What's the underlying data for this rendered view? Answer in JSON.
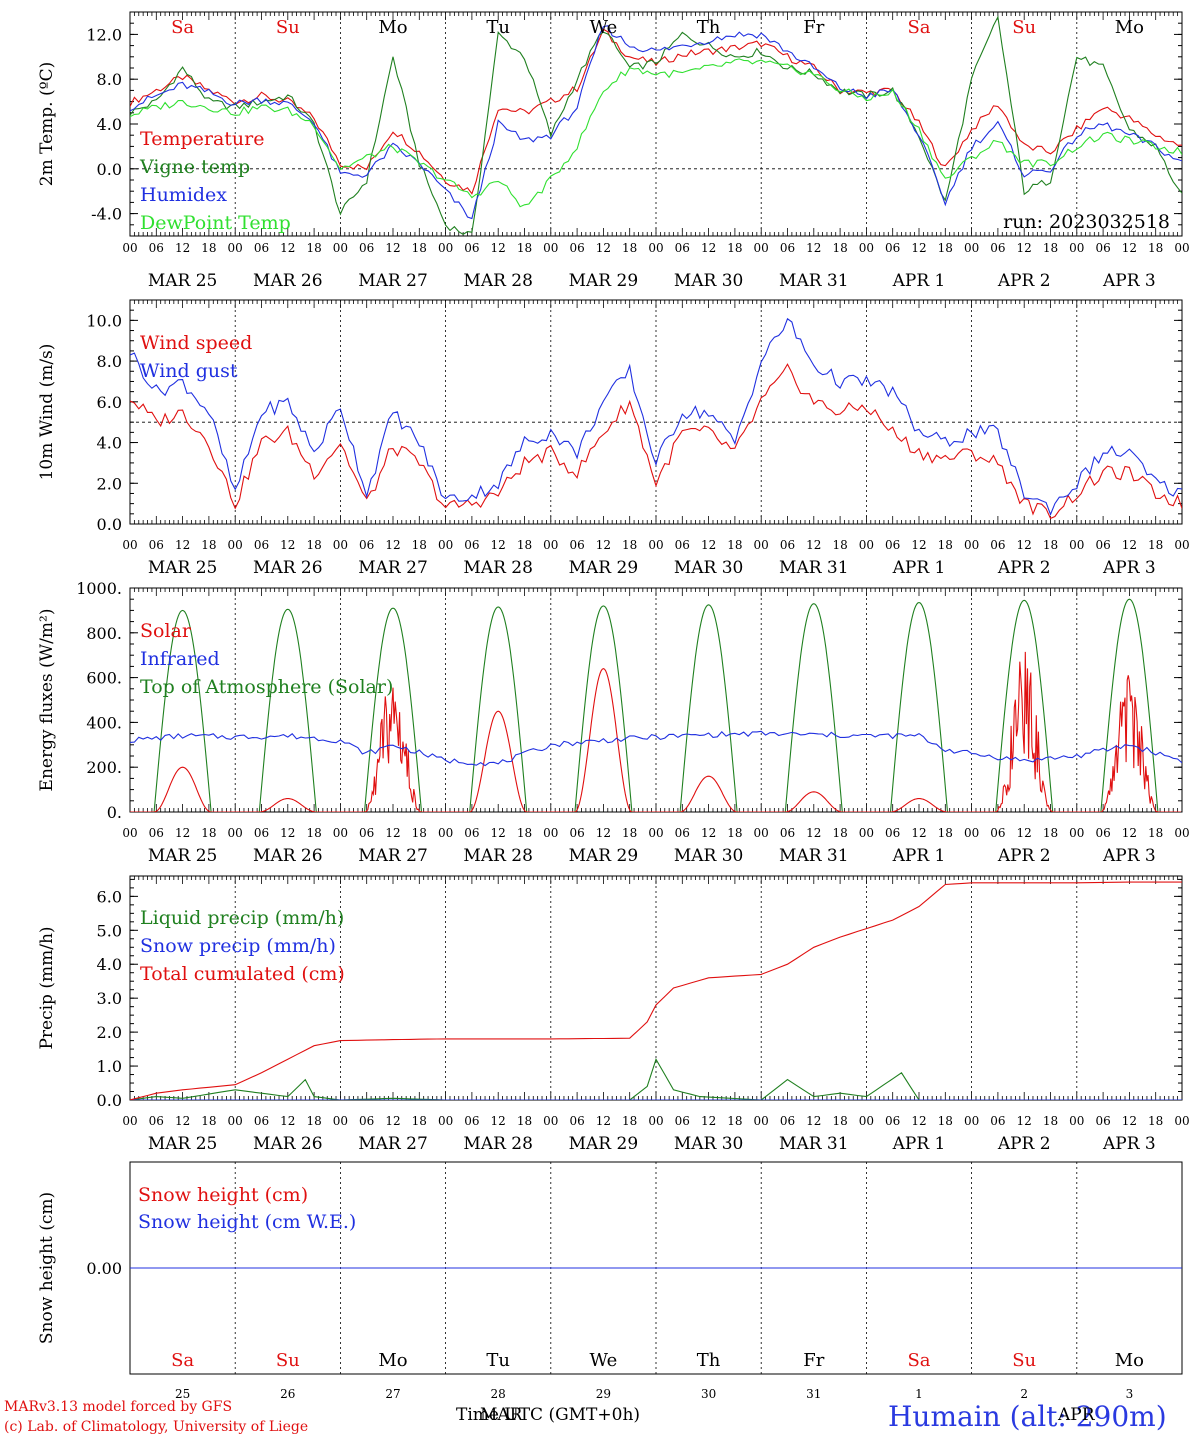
{
  "meta": {
    "model_line": "MARv3.13 model forced by GFS",
    "copyright_line": "(c) Lab. of Climatology, University of Liege",
    "time_axis_label": "Time UTC (GMT+0h)",
    "month_overlay": "MAR",
    "month_overlay_2": "APR",
    "station_label": "Humain (alt: 290m)",
    "run_label": "run: 2023032518"
  },
  "axis_common": {
    "hour_ticks": [
      "00",
      "06",
      "12",
      "18"
    ],
    "day_labels": [
      "MAR 25",
      "MAR 26",
      "MAR 27",
      "MAR 28",
      "MAR 29",
      "MAR 30",
      "MAR 31",
      "APR  1",
      "APR  2",
      "APR  3"
    ],
    "weekdays": [
      "Sa",
      "Su",
      "Mo",
      "Tu",
      "We",
      "Th",
      "Fr",
      "Sa",
      "Su",
      "Mo"
    ],
    "weekday_colors": [
      "#e01010",
      "#e01010",
      "#000000",
      "#000000",
      "#000000",
      "#000000",
      "#000000",
      "#e01010",
      "#e01010",
      "#000000"
    ],
    "day_numbers": [
      "25",
      "26",
      "27",
      "28",
      "29",
      "30",
      "31",
      "1",
      "2",
      "3"
    ],
    "days": 10
  },
  "chart_data": [
    {
      "id": "temperature",
      "type": "line",
      "ylabel": "2m Temp. (ºC)",
      "ylim": [
        -6.0,
        14.0
      ],
      "yticks": [
        -4.0,
        0.0,
        4.0,
        8.0,
        12.0
      ],
      "ytick_labels": [
        "-4.0",
        "0.0",
        "4.0",
        "8.0",
        "12.0"
      ],
      "ref_line": 0.0,
      "x_unit": "hours since MAR 25 00 UTC",
      "series": [
        {
          "name": "Temperature",
          "color": "#e01010",
          "x": [
            0,
            6,
            12,
            18,
            24,
            30,
            36,
            42,
            48,
            54,
            60,
            66,
            72,
            78,
            84,
            90,
            96,
            102,
            108,
            114,
            120,
            126,
            132,
            138,
            144,
            150,
            156,
            162,
            168,
            174,
            180,
            186,
            192,
            198,
            204,
            210,
            216,
            222,
            228,
            234,
            240
          ],
          "values": [
            5.9,
            7.0,
            8.2,
            7.0,
            6.0,
            6.5,
            6.0,
            4.5,
            0.5,
            0.0,
            3.5,
            1.5,
            -1.0,
            -2.0,
            5.5,
            5.0,
            6.0,
            7.2,
            12.3,
            10.0,
            9.4,
            10.2,
            10.5,
            10.8,
            11.2,
            10.0,
            9.0,
            7.0,
            6.8,
            7.0,
            4.0,
            0.0,
            3.5,
            5.8,
            2.0,
            1.5,
            3.5,
            5.5,
            4.5,
            3.0,
            2.0
          ]
        },
        {
          "name": "Vigne temp",
          "color": "#208020",
          "x": [
            0,
            6,
            12,
            18,
            24,
            30,
            36,
            42,
            48,
            54,
            60,
            66,
            72,
            78,
            84,
            90,
            96,
            102,
            108,
            114,
            120,
            126,
            132,
            138,
            144,
            150,
            156,
            162,
            168,
            174,
            180,
            186,
            192,
            198,
            204,
            210,
            216,
            222,
            228,
            234,
            240
          ],
          "values": [
            5.0,
            6.0,
            9.0,
            6.0,
            5.5,
            6.0,
            6.5,
            4.0,
            -4.0,
            -1.0,
            10.0,
            0.5,
            -5.0,
            -6.0,
            12.0,
            10.0,
            3.0,
            8.0,
            12.5,
            9.0,
            9.5,
            12.0,
            11.0,
            10.0,
            10.5,
            9.0,
            8.5,
            7.0,
            6.5,
            7.0,
            3.0,
            -3.0,
            8.0,
            13.5,
            -2.0,
            -1.0,
            10.0,
            9.0,
            3.5,
            2.0,
            -2.5
          ]
        },
        {
          "name": "Humidex",
          "color": "#2030e0",
          "x": [
            0,
            6,
            12,
            18,
            24,
            30,
            36,
            42,
            48,
            54,
            60,
            66,
            72,
            78,
            84,
            90,
            96,
            102,
            108,
            114,
            120,
            126,
            132,
            138,
            144,
            150,
            156,
            162,
            168,
            174,
            180,
            186,
            192,
            198,
            204,
            210,
            216,
            222,
            228,
            234,
            240
          ],
          "values": [
            5.5,
            6.5,
            7.5,
            6.8,
            5.8,
            6.2,
            5.8,
            4.2,
            -0.5,
            -0.5,
            2.0,
            0.5,
            -2.0,
            -4.5,
            4.0,
            2.5,
            3.0,
            5.5,
            12.8,
            11.0,
            10.5,
            11.0,
            11.5,
            12.0,
            12.0,
            10.5,
            9.0,
            7.2,
            6.5,
            7.0,
            3.0,
            -3.0,
            2.0,
            4.0,
            -0.5,
            0.0,
            3.0,
            4.0,
            3.0,
            2.0,
            0.5
          ]
        },
        {
          "name": "DewPoint Temp",
          "color": "#30e030",
          "x": [
            0,
            6,
            12,
            18,
            24,
            30,
            36,
            42,
            48,
            54,
            60,
            66,
            72,
            78,
            84,
            90,
            96,
            102,
            108,
            114,
            120,
            126,
            132,
            138,
            144,
            150,
            156,
            162,
            168,
            174,
            180,
            186,
            192,
            198,
            204,
            210,
            216,
            222,
            228,
            234,
            240
          ],
          "values": [
            4.8,
            5.5,
            6.0,
            5.5,
            5.0,
            5.5,
            5.2,
            4.0,
            0.0,
            1.0,
            2.0,
            0.5,
            -1.0,
            -2.5,
            -1.0,
            -3.5,
            -1.0,
            2.0,
            7.0,
            9.0,
            8.5,
            8.5,
            9.0,
            9.5,
            9.5,
            9.0,
            8.5,
            7.0,
            6.3,
            6.8,
            3.5,
            -1.0,
            1.0,
            2.5,
            0.5,
            0.5,
            2.0,
            3.0,
            2.5,
            2.0,
            1.5
          ]
        }
      ]
    },
    {
      "id": "wind",
      "type": "line",
      "ylabel": "10m Wind (m/s)",
      "ylim": [
        0.0,
        11.0
      ],
      "yticks": [
        0.0,
        2.0,
        4.0,
        6.0,
        8.0,
        10.0
      ],
      "ytick_labels": [
        "0.0",
        "2.0",
        "4.0",
        "6.0",
        "8.0",
        "10.0"
      ],
      "ref_line": 5.0,
      "x_unit": "hours since MAR 25 00 UTC",
      "series": [
        {
          "name": "Wind speed",
          "color": "#e01010",
          "x": [
            0,
            6,
            12,
            18,
            24,
            30,
            36,
            42,
            48,
            54,
            60,
            66,
            72,
            78,
            84,
            90,
            96,
            102,
            108,
            114,
            120,
            126,
            132,
            138,
            144,
            150,
            156,
            162,
            168,
            174,
            180,
            186,
            192,
            198,
            204,
            210,
            216,
            222,
            228,
            234,
            240
          ],
          "values": [
            6.2,
            5.0,
            5.5,
            4.0,
            1.0,
            4.0,
            4.5,
            2.5,
            4.0,
            1.0,
            3.8,
            3.0,
            0.8,
            1.0,
            1.5,
            3.0,
            3.5,
            2.5,
            4.5,
            6.0,
            2.0,
            4.5,
            4.5,
            3.5,
            6.0,
            7.5,
            6.0,
            5.5,
            5.8,
            4.5,
            3.5,
            3.2,
            3.5,
            3.0,
            1.0,
            0.5,
            1.5,
            2.5,
            2.5,
            1.5,
            1.0
          ]
        },
        {
          "name": "Wind gust",
          "color": "#2030e0",
          "x": [
            0,
            6,
            12,
            18,
            24,
            30,
            36,
            42,
            48,
            54,
            60,
            66,
            72,
            78,
            84,
            90,
            96,
            102,
            108,
            114,
            120,
            126,
            132,
            138,
            144,
            150,
            156,
            162,
            168,
            174,
            180,
            186,
            192,
            198,
            204,
            210,
            216,
            222,
            228,
            234,
            240
          ],
          "values": [
            8.5,
            6.5,
            7.0,
            5.5,
            1.5,
            5.5,
            6.0,
            3.5,
            5.8,
            1.5,
            5.5,
            4.0,
            1.2,
            1.4,
            2.0,
            4.0,
            4.5,
            3.5,
            6.0,
            7.5,
            3.0,
            5.5,
            5.5,
            4.0,
            8.0,
            10.0,
            7.8,
            7.0,
            7.0,
            6.5,
            4.5,
            4.0,
            4.5,
            4.5,
            1.5,
            0.8,
            2.0,
            3.5,
            3.5,
            2.0,
            1.5
          ]
        }
      ]
    },
    {
      "id": "energy",
      "type": "line",
      "ylabel": "Energy fluxes (W/m²)",
      "ylim": [
        0,
        1000
      ],
      "yticks": [
        0,
        200,
        400,
        600,
        800,
        1000
      ],
      "ytick_labels": [
        "0.",
        "200.",
        "400.",
        "600.",
        "800.",
        "1000."
      ],
      "x_unit": "hours since MAR 25 00 UTC",
      "toa_peaks": [
        900,
        905,
        910,
        915,
        920,
        925,
        930,
        935,
        945,
        950
      ],
      "solar_peaks": [
        200,
        60,
        650,
        450,
        640,
        160,
        90,
        60,
        720,
        650
      ],
      "series": [
        {
          "name": "Solar",
          "color": "#e01010"
        },
        {
          "name": "Infrared",
          "color": "#2030e0",
          "x": [
            0,
            12,
            24,
            36,
            48,
            54,
            60,
            72,
            84,
            96,
            108,
            120,
            132,
            144,
            156,
            168,
            180,
            186,
            192,
            204,
            216,
            228,
            240
          ],
          "values": [
            320,
            340,
            335,
            340,
            320,
            260,
            300,
            230,
            215,
            300,
            320,
            335,
            345,
            350,
            345,
            340,
            340,
            280,
            260,
            230,
            250,
            300,
            230
          ]
        },
        {
          "name": "Top of Atmosphere (Solar)",
          "color": "#208020"
        }
      ]
    },
    {
      "id": "precip",
      "type": "line",
      "ylabel": "Precip (mm/h)",
      "ylim": [
        0.0,
        6.6
      ],
      "yticks": [
        0.0,
        1.0,
        2.0,
        3.0,
        4.0,
        5.0,
        6.0
      ],
      "ytick_labels": [
        "0.0",
        "1.0",
        "2.0",
        "3.0",
        "4.0",
        "5.0",
        "6.0"
      ],
      "x_unit": "hours since MAR 25 00 UTC",
      "series": [
        {
          "name": "Liquid precip (mm/h)",
          "color": "#208020",
          "x": [
            0,
            6,
            12,
            24,
            30,
            36,
            40,
            42,
            48,
            60,
            72,
            96,
            114,
            118,
            120,
            124,
            130,
            144,
            150,
            156,
            162,
            168,
            176,
            180,
            186,
            192,
            240
          ],
          "values": [
            0.0,
            0.1,
            0.05,
            0.3,
            0.2,
            0.1,
            0.6,
            0.1,
            0.0,
            0.05,
            0.0,
            0.0,
            0.0,
            0.4,
            1.2,
            0.3,
            0.1,
            0.0,
            0.6,
            0.1,
            0.2,
            0.1,
            0.8,
            0.0,
            0.0,
            0.0,
            0.0
          ]
        },
        {
          "name": "Snow precip (mm/h)",
          "color": "#2030e0",
          "x": [
            0,
            240
          ],
          "values": [
            0.0,
            0.0
          ]
        },
        {
          "name": "Total cumulated (cm)",
          "color": "#e01010",
          "x": [
            0,
            6,
            12,
            24,
            30,
            36,
            42,
            48,
            60,
            72,
            96,
            114,
            118,
            120,
            124,
            132,
            144,
            150,
            156,
            162,
            168,
            174,
            180,
            186,
            192,
            204,
            216,
            228,
            240
          ],
          "values": [
            0.0,
            0.2,
            0.3,
            0.45,
            0.8,
            1.2,
            1.6,
            1.75,
            1.78,
            1.8,
            1.8,
            1.82,
            2.3,
            2.8,
            3.3,
            3.6,
            3.7,
            4.0,
            4.5,
            4.8,
            5.05,
            5.3,
            5.7,
            6.35,
            6.4,
            6.4,
            6.4,
            6.42,
            6.42
          ]
        }
      ]
    },
    {
      "id": "snow",
      "type": "line",
      "ylabel": "Snow height (cm)",
      "ylim": [
        -1.0,
        1.0
      ],
      "yticks": [
        0.0
      ],
      "ytick_labels": [
        "0.00"
      ],
      "x_unit": "hours since MAR 25 00 UTC",
      "series": [
        {
          "name": "Snow height (cm)",
          "color": "#e01010",
          "x": [
            0,
            240
          ],
          "values": [
            0.0,
            0.0
          ]
        },
        {
          "name": "Snow height (cm W.E.)",
          "color": "#2030e0",
          "x": [
            0,
            240
          ],
          "values": [
            0.0,
            0.0
          ]
        }
      ]
    }
  ]
}
